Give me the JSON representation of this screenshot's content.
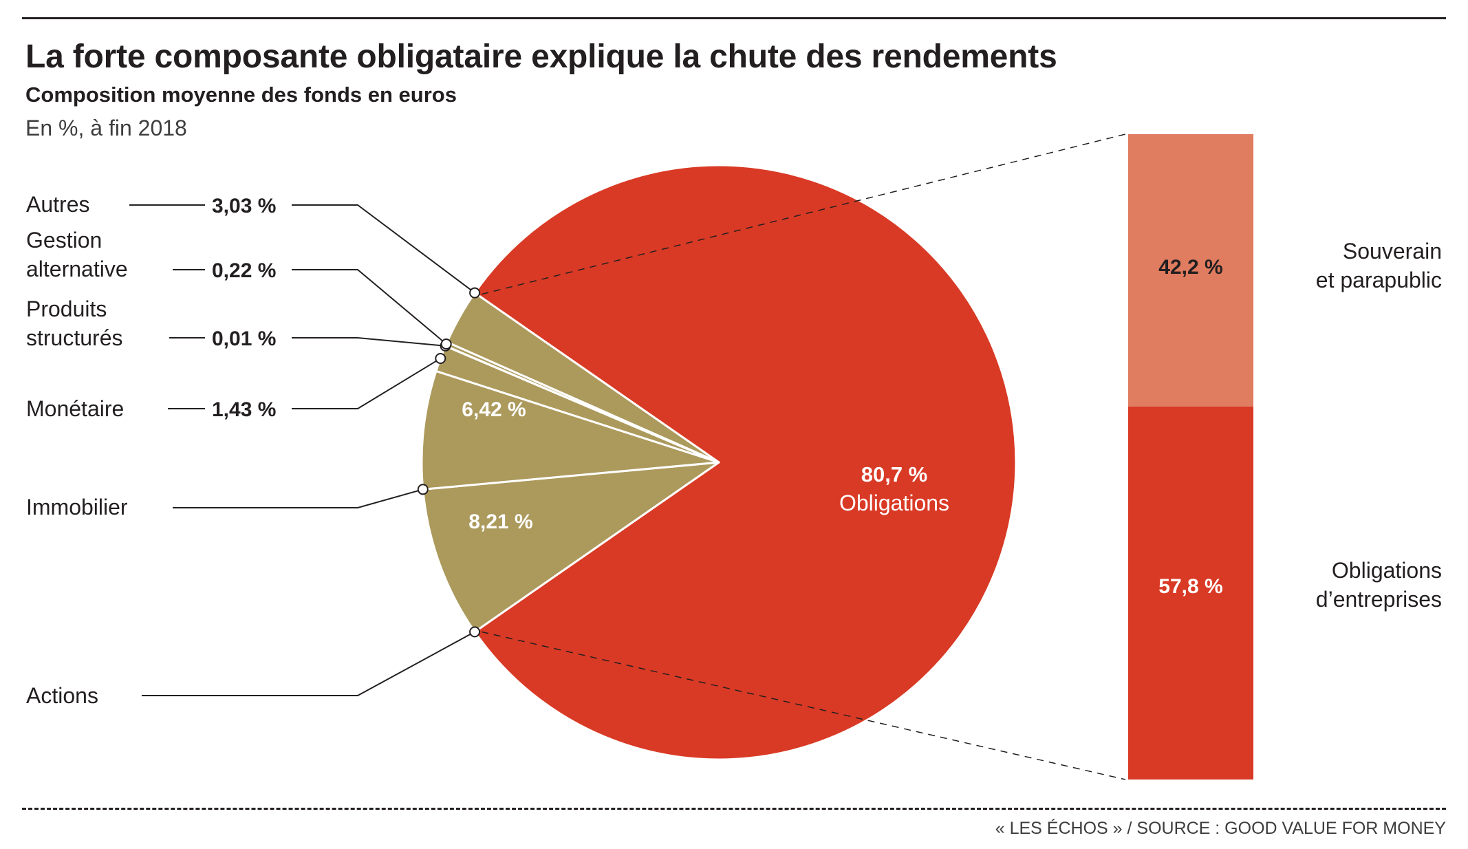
{
  "header": {
    "title": "La forte composante obligataire explique la chute des rendements",
    "subtitle": "Composition moyenne des fonds en euros",
    "unit": "En %, à fin 2018"
  },
  "footer": {
    "source": "« LES ÉCHOS » / SOURCE : GOOD VALUE FOR MONEY"
  },
  "colors": {
    "obligations": "#d93a25",
    "other": "#ac9a5d",
    "souverain": "#e07c5f",
    "entreprises": "#d93a25"
  },
  "chart_data": [
    {
      "type": "pie",
      "slices": [
        {
          "label": "Obligations",
          "value": 80.7,
          "value_label": "80,7 %"
        },
        {
          "label": "Actions",
          "value": 8.21,
          "value_label": "8,21 %"
        },
        {
          "label": "Immobilier",
          "value": 6.42,
          "value_label": "6,42 %"
        },
        {
          "label": "Monétaire",
          "value": 1.43,
          "value_label": "1,43 %"
        },
        {
          "label": "Produits structurés",
          "value": 0.01,
          "value_label": "0,01 %"
        },
        {
          "label": "Gestion alternative",
          "value": 0.22,
          "value_label": "0,22 %"
        },
        {
          "label": "Autres",
          "value": 3.03,
          "value_label": "3,03 %"
        }
      ]
    },
    {
      "type": "bar",
      "stacked": true,
      "parent": "Obligations",
      "segments": [
        {
          "label": "Souverain et parapublic",
          "value": 42.2,
          "value_label": "42,2 %"
        },
        {
          "label": "Obligations d’entreprises",
          "value": 57.8,
          "value_label": "57,8 %"
        }
      ]
    }
  ]
}
